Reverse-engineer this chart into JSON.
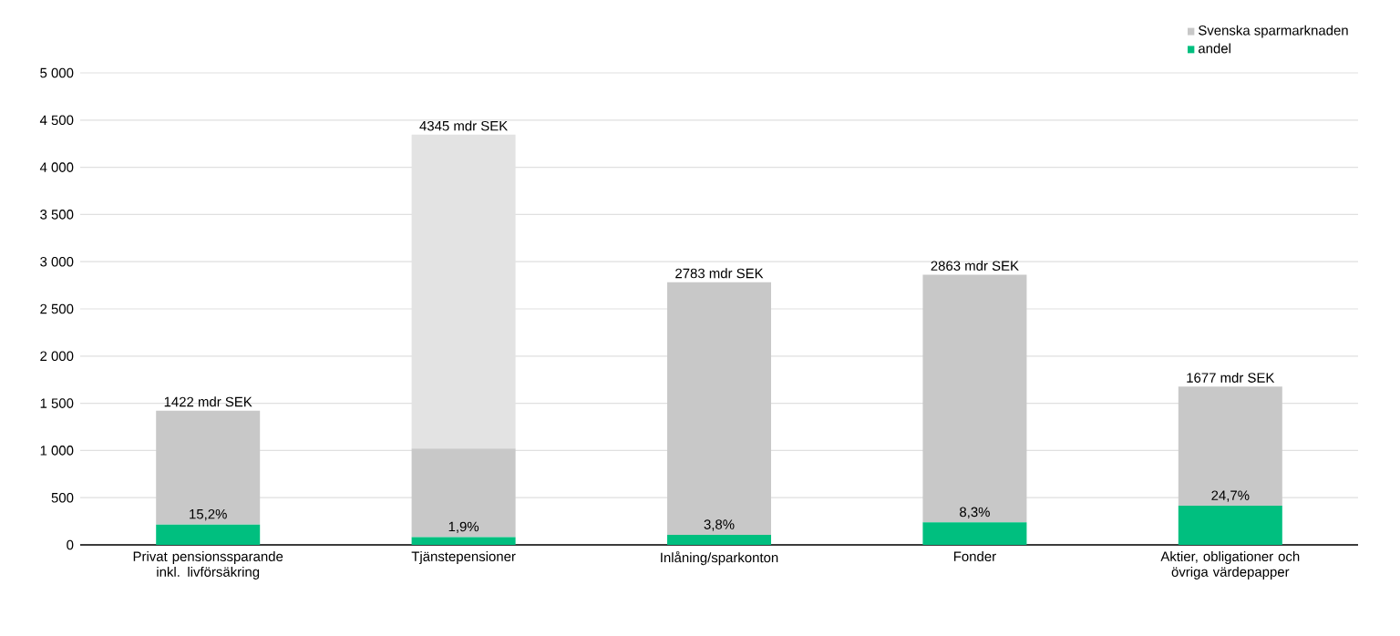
{
  "chart_data": {
    "type": "bar",
    "stacked": true,
    "categories": [
      "Privat pensionssparande inkl. livförsäkring",
      "Tjänstepensioner",
      "Inlåning/sparkonton",
      "Fonder",
      "Aktier, obligationer och övriga värdepapper"
    ],
    "series": [
      {
        "name": "andel",
        "color": "#00bf7f",
        "values": [
          216,
          83,
          106,
          238,
          414
        ]
      },
      {
        "name": "Svenska sparmarknaden",
        "color": "#c8c8c8",
        "values": [
          1206,
          937,
          2677,
          2625,
          1263
        ]
      },
      {
        "color": "#e3e3e3",
        "values": [
          null,
          3325,
          null,
          null,
          null
        ]
      }
    ],
    "totals": [
      "1422 mdr SEK",
      "4345 mdr SEK",
      "2783 mdr SEK",
      "2863 mdr SEK",
      "1677 mdr SEK"
    ],
    "annotations": [
      {
        "text": "15,2%",
        "x": "Privat pensionssparande inkl. livförsäkring",
        "y": 216
      },
      {
        "text": "1,9%",
        "x": "Tjänstepensioner",
        "y": 83
      },
      {
        "text": "3,8%",
        "x": "Inlåning/sparkonton",
        "y": 106
      },
      {
        "text": "8,3%",
        "x": "Fonder",
        "y": 238
      },
      {
        "text": "24,7%",
        "x": "Aktier, obligationer och övriga värdepapper",
        "y": 414
      }
    ],
    "ylim": [
      0,
      5000
    ],
    "yticks": [
      0,
      500,
      {
        "value": 1000,
        "label": "1 000"
      },
      {
        "value": 1500,
        "label": "1 500"
      },
      {
        "value": 2000,
        "label": "2 000"
      },
      {
        "value": 2500,
        "label": "2 500"
      },
      {
        "value": 3000,
        "label": "3 000"
      },
      {
        "value": 3500,
        "label": "3 500"
      },
      {
        "value": 4000,
        "label": "4 000"
      },
      {
        "value": 4500,
        "label": "4 500"
      },
      {
        "value": 5000,
        "label": "5 000"
      }
    ],
    "grid": "y",
    "legend": "top right"
  }
}
